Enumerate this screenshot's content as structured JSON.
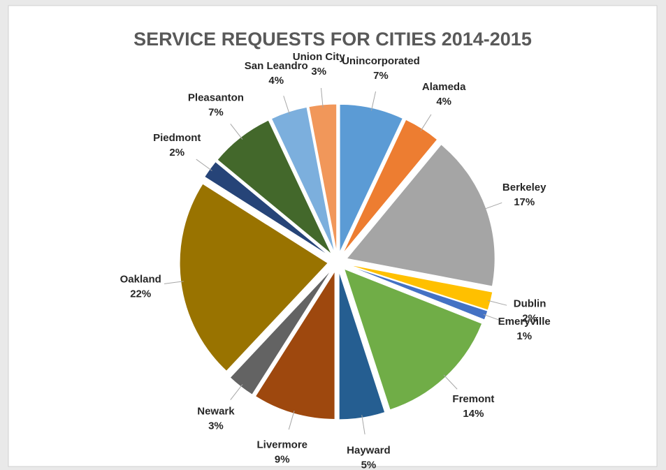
{
  "chart_data": {
    "type": "pie",
    "title": "SERVICE REQUESTS FOR CITIES 2014-2015",
    "categories": [
      "Unincorporated",
      "Alameda",
      "Berkeley",
      "Dublin",
      "Emeryville",
      "Fremont",
      "Hayward",
      "Livermore",
      "Newark",
      "Oakland",
      "Piedmont",
      "Pleasanton",
      "San Leandro",
      "Union City"
    ],
    "values": [
      7,
      4,
      17,
      2,
      1,
      14,
      5,
      9,
      3,
      22,
      2,
      7,
      4,
      3
    ],
    "value_labels": [
      "7%",
      "4%",
      "17%",
      "2%",
      "1%",
      "14%",
      "5%",
      "9%",
      "3%",
      "22%",
      "2%",
      "7%",
      "4%",
      "3%"
    ],
    "colors": [
      "#5b9bd5",
      "#ed7d31",
      "#a5a5a5",
      "#ffc000",
      "#4472c4",
      "#70ad47",
      "#255e91",
      "#9e480e",
      "#636363",
      "#997300",
      "#264478",
      "#43682b",
      "#7cafdd",
      "#f1975a"
    ]
  }
}
